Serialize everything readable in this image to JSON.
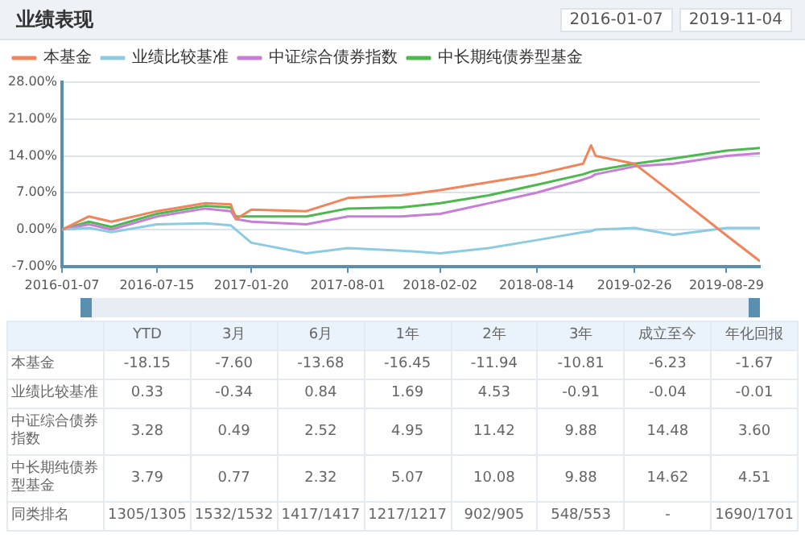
{
  "chart_data": {
    "type": "line",
    "title": "业绩表现",
    "x": [
      "2016-01-07",
      "2016-03-01",
      "2016-04-15",
      "2016-07-15",
      "2016-10-20",
      "2016-12-10",
      "2016-12-20",
      "2017-01-20",
      "2017-05-10",
      "2017-08-01",
      "2017-11-15",
      "2018-02-02",
      "2018-05-10",
      "2018-08-14",
      "2018-11-15",
      "2018-12-01",
      "2018-12-10",
      "2019-02-26",
      "2019-05-15",
      "2019-08-29",
      "2019-11-04"
    ],
    "series": [
      {
        "name": "本基金",
        "color": "#f0845a",
        "values": [
          0,
          2.5,
          1.5,
          3.5,
          5,
          4.8,
          2,
          3.8,
          3.5,
          6,
          6.5,
          7.5,
          9,
          10.5,
          12.5,
          16,
          14,
          12.5,
          6.8,
          -1.1,
          -6
        ]
      },
      {
        "name": "业绩比较基准",
        "color": "#8ccbe0",
        "values": [
          0,
          0.3,
          -0.5,
          1,
          1.2,
          0.8,
          0,
          -2.5,
          -4.5,
          -3.5,
          -4,
          -4.5,
          -3.5,
          -2,
          -0.5,
          -0.3,
          0,
          0.3,
          -1,
          0.3,
          0.3
        ]
      },
      {
        "name": "中证综合债券指数",
        "color": "#c77fd6",
        "values": [
          0,
          1,
          0,
          2.5,
          4,
          3.5,
          2,
          1.5,
          1,
          2.5,
          2.5,
          3,
          5,
          7,
          9.5,
          10,
          10.5,
          12,
          12.5,
          14,
          14.5
        ]
      },
      {
        "name": "中长期纯债券型基金",
        "color": "#4db84d",
        "values": [
          0,
          1.5,
          0.5,
          3,
          4.5,
          4.2,
          2.5,
          2.5,
          2.5,
          4,
          4.2,
          5,
          6.5,
          8.5,
          10.5,
          11,
          11.2,
          12.5,
          13.5,
          15,
          15.5
        ]
      }
    ],
    "xlim": [
      "2016-01-07",
      "2019-11-04"
    ],
    "xticks": [
      "2016-01-07",
      "2016-07-15",
      "2017-01-20",
      "2017-08-01",
      "2018-02-02",
      "2018-08-14",
      "2019-02-26",
      "2019-08-29"
    ],
    "ylim": [
      -7,
      28
    ],
    "yticks": [
      {
        "value": -7,
        "label": "-7.00%"
      },
      {
        "value": 0,
        "label": "0.00%"
      },
      {
        "value": 7,
        "label": "7.00%"
      },
      {
        "value": 14,
        "label": "14.00%"
      },
      {
        "value": 21,
        "label": "21.00%"
      },
      {
        "value": 28,
        "label": "28.00%"
      }
    ],
    "grid": "y",
    "legend": "top left",
    "marker": "none",
    "line_style": "solid",
    "annotations": [
      "2016-01-07",
      "2019-11-04",
      "YTD",
      "3月",
      "6月",
      "1年",
      "2年",
      "3年",
      "成立至今",
      "年化回报",
      "本基金",
      "-18.15",
      "-7.60",
      "-13.68",
      "-16.45",
      "-11.94",
      "-10.81",
      "-6.23",
      "-1.67",
      "业绩比较基准",
      "0.33",
      "-0.34",
      "0.84",
      "1.69",
      "4.53",
      "-0.91",
      "-0.04",
      "-0.01",
      "中证综合债券指数",
      "3.28",
      "0.49",
      "2.52",
      "4.95",
      "11.42",
      "9.88",
      "14.48",
      "3.60",
      "中长期纯债券型基金",
      "3.79",
      "0.77",
      "2.32",
      "5.07",
      "10.08",
      "9.88",
      "14.62",
      "4.51",
      "同类排名",
      "1305/1305",
      "1532/1532",
      "1417/1417",
      "1217/1217",
      "902/905",
      "548/553",
      "-",
      "1690/1701"
    ]
  }
}
